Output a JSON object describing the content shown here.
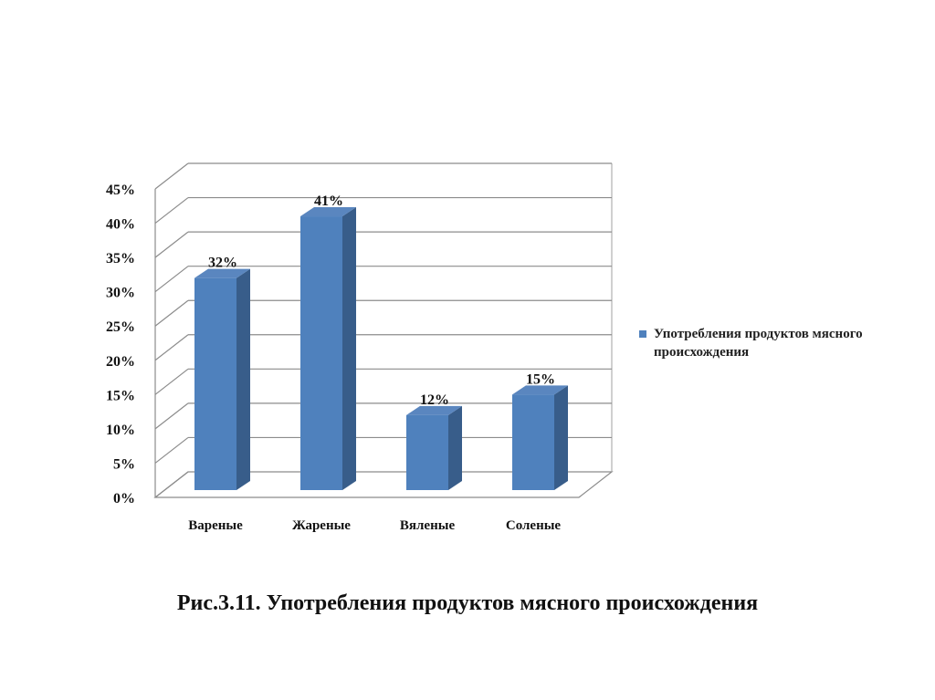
{
  "chart_data": {
    "type": "bar",
    "categories": [
      "Вареные",
      "Жареные",
      "Вяленые",
      "Соленые"
    ],
    "series": [
      {
        "name": "Употребления продуктов мясного происхождения",
        "values": [
          32,
          41,
          12,
          15
        ],
        "color": "#4F81BD"
      }
    ],
    "data_labels": [
      "32%",
      "41%",
      "12%",
      "15%"
    ],
    "ylim": [
      0,
      45
    ],
    "yticks": [
      "0%",
      "5%",
      "10%",
      "15%",
      "20%",
      "25%",
      "30%",
      "35%",
      "40%",
      "45%"
    ],
    "grid": true,
    "legend": "right",
    "three_d": true
  },
  "legend": {
    "label": "Употребления продуктов мясного происхождения"
  },
  "caption": "Рис.3.11. Употребления продуктов мясного происхождения"
}
